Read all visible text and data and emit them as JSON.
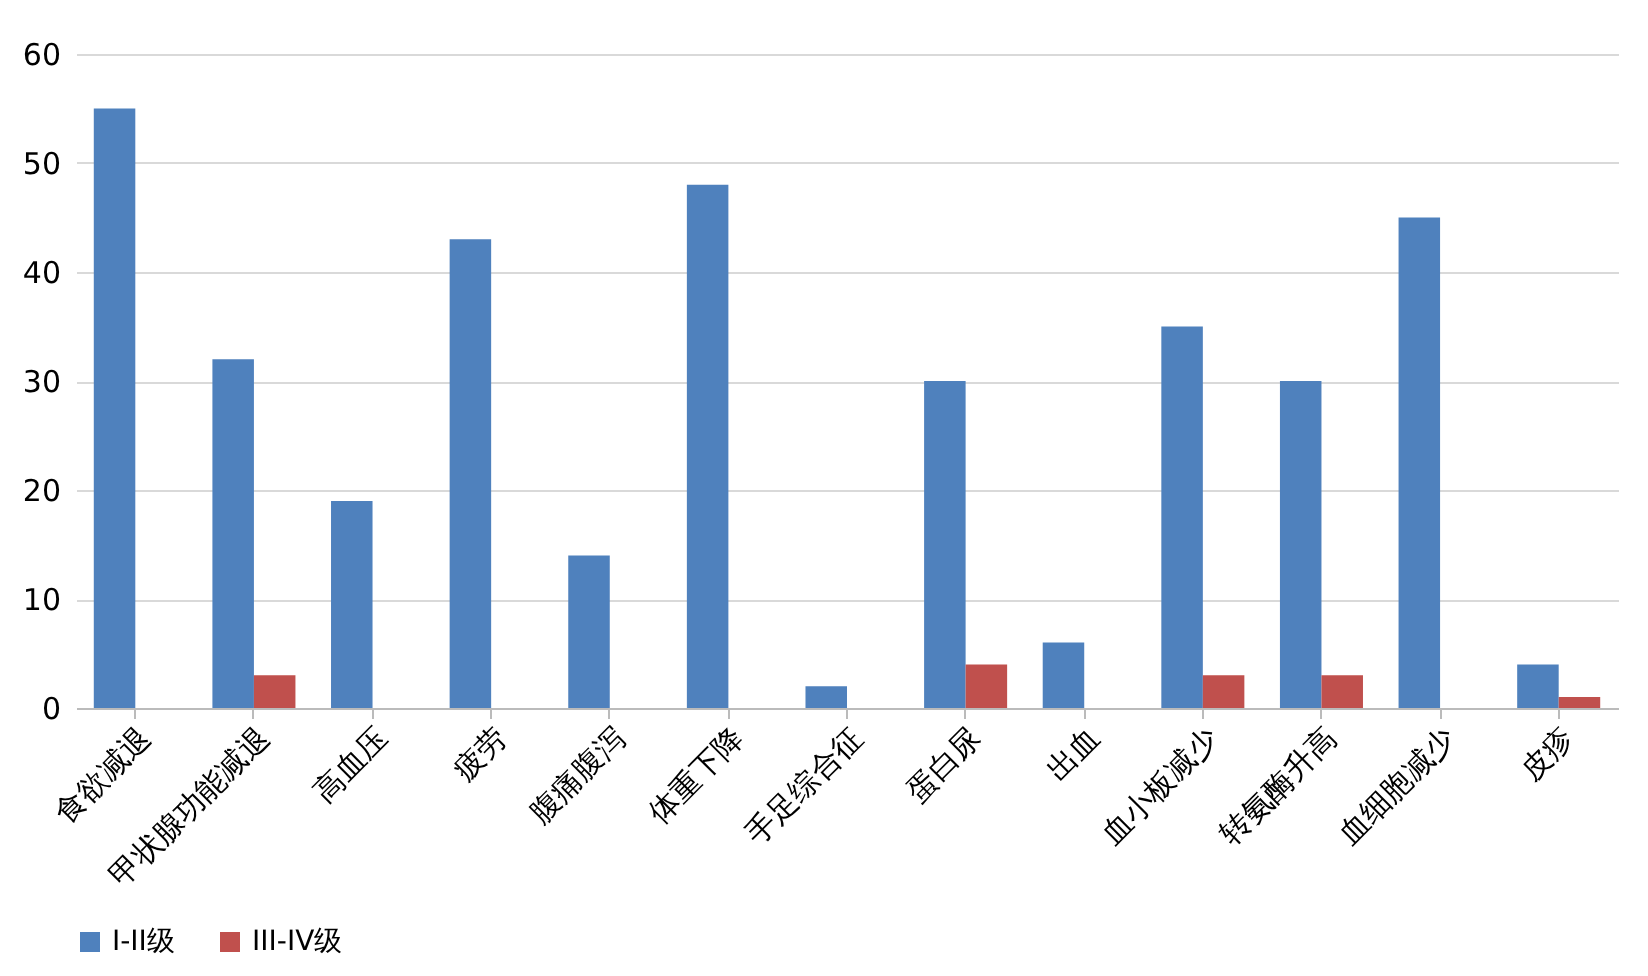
{
  "chart_data": {
    "type": "bar",
    "categories": [
      "食欲减退",
      "甲状腺功能减退",
      "高血压",
      "疲劳",
      "腹痛腹泻",
      "体重下降",
      "手足综合征",
      "蛋白尿",
      "出血",
      "血小板减少",
      "转氨酶升高",
      "血细胞减少",
      "皮疹"
    ],
    "series": [
      {
        "name": "I-II级",
        "color": "#4f81bd",
        "values": [
          55,
          32,
          19,
          43,
          14,
          48,
          2,
          30,
          6,
          35,
          30,
          45,
          4
        ]
      },
      {
        "name": "III-IV级",
        "color": "#c0504d",
        "values": [
          null,
          3,
          null,
          null,
          null,
          null,
          null,
          4,
          null,
          3,
          3,
          null,
          1
        ]
      }
    ],
    "ylim": [
      0,
      60
    ],
    "yticks": [
      0,
      10,
      20,
      30,
      40,
      50,
      60
    ],
    "grid": "y",
    "legend": "bottom"
  }
}
